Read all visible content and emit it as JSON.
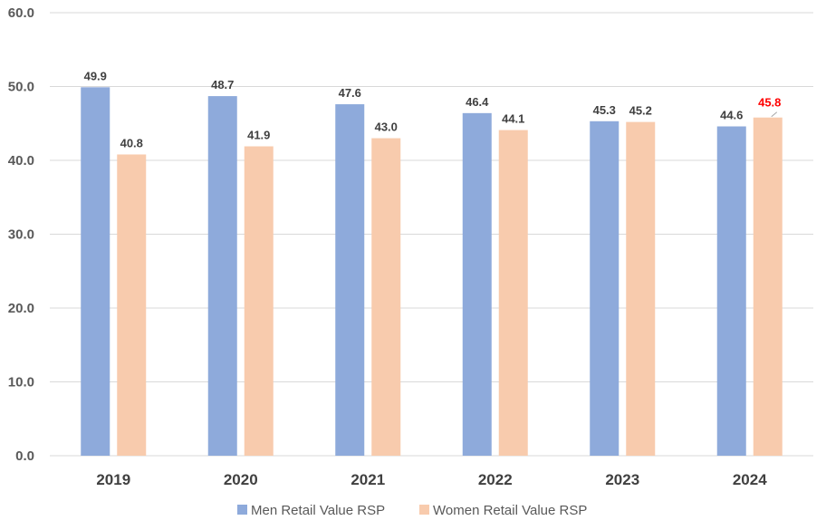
{
  "chart_data": {
    "type": "bar",
    "categories": [
      "2019",
      "2020",
      "2021",
      "2022",
      "2023",
      "2024"
    ],
    "series": [
      {
        "name": "Men Retail Value RSP",
        "color": "#8eaadb",
        "values": [
          49.9,
          48.7,
          47.6,
          46.4,
          45.3,
          44.6
        ],
        "labels": [
          "49.9",
          "48.7",
          "47.6",
          "46.4",
          "45.3",
          "44.6"
        ]
      },
      {
        "name": "Women Retail Value RSP",
        "color": "#f8cbad",
        "values": [
          40.8,
          41.9,
          43.0,
          44.1,
          45.2,
          45.8
        ],
        "labels": [
          "40.8",
          "41.9",
          "43.0",
          "44.1",
          "45.2",
          "45.8"
        ]
      }
    ],
    "ylim": [
      0,
      60
    ],
    "yticks": [
      "0.0",
      "10.0",
      "20.0",
      "30.0",
      "40.0",
      "50.0",
      "60.0"
    ],
    "grid": true,
    "legend_position": "bottom",
    "highlight": {
      "series": 1,
      "index": 5,
      "color": "#ff0000"
    },
    "label_color": "#404040",
    "grid_color": "#d9d9d9"
  }
}
